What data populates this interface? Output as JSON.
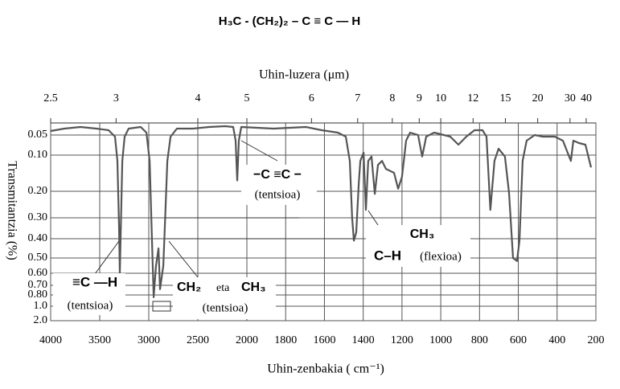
{
  "chart_data": {
    "type": "line",
    "title": "H₃C - (CH₂)₂ – C ≡ C — H",
    "top_axis": {
      "label": "Uhin-luzera (μm)",
      "ticks": [
        2.5,
        3,
        4,
        5,
        6,
        7,
        8,
        9,
        10,
        12,
        15,
        20,
        30,
        40
      ]
    },
    "xlabel": "Uhin-zenbakia ( cm⁻¹)",
    "ylabel": "Transmitantzia (%)",
    "xlim": [
      4000,
      200
    ],
    "x_scale_break": 2000,
    "xticks": [
      4000,
      3500,
      3000,
      2500,
      2000,
      1800,
      1600,
      1400,
      1200,
      1000,
      800,
      600,
      400,
      200
    ],
    "ylim": [
      0.02,
      2
    ],
    "yticks": [
      0.05,
      {
        "value": 0.1,
        "label": "0.10"
      },
      {
        "value": 0.2,
        "label": "0.20"
      },
      {
        "value": 0.3,
        "label": "0.30"
      },
      {
        "value": 0.4,
        "label": "0.40"
      },
      {
        "value": 0.5,
        "label": "0.50"
      },
      {
        "value": 0.6,
        "label": "0.60"
      },
      {
        "value": 0.7,
        "label": "0.70"
      },
      {
        "value": 0.8,
        "label": "0.80"
      },
      {
        "value": 1,
        "label": "1.0"
      },
      {
        "value": 2,
        "label": "2.0"
      }
    ],
    "grid": true,
    "series": [
      {
        "color": "#555555",
        "x": [
          4000,
          3861,
          3697,
          3533,
          3410,
          3344,
          3320,
          3303,
          3295,
          3270,
          3246,
          3205,
          3082,
          3024,
          2991,
          2967,
          2950,
          2926,
          2901,
          2885,
          2852,
          2836,
          2811,
          2778,
          2713,
          2549,
          2385,
          2221,
          2139,
          2115,
          2098,
          2082,
          2057,
          1863,
          1697,
          1614,
          1531,
          1490,
          1469,
          1457,
          1448,
          1436,
          1423,
          1415,
          1398,
          1386,
          1374,
          1357,
          1340,
          1324,
          1303,
          1283,
          1241,
          1220,
          1200,
          1179,
          1158,
          1117,
          1096,
          1075,
          1034,
          951,
          909,
          868,
          826,
          785,
          764,
          744,
          723,
          702,
          669,
          648,
          627,
          607,
          594,
          578,
          557,
          515,
          474,
          412,
          370,
          329,
          316,
          287,
          254,
          225
        ],
        "values": [
          0.04,
          0.034,
          0.03,
          0.034,
          0.038,
          0.054,
          0.116,
          0.335,
          0.6,
          0.116,
          0.054,
          0.034,
          0.03,
          0.044,
          0.116,
          0.41,
          0.84,
          0.55,
          0.45,
          0.74,
          0.55,
          0.34,
          0.116,
          0.054,
          0.034,
          0.034,
          0.03,
          0.028,
          0.03,
          0.064,
          0.17,
          0.064,
          0.03,
          0.034,
          0.03,
          0.038,
          0.044,
          0.054,
          0.116,
          0.3,
          0.41,
          0.37,
          0.18,
          0.116,
          0.094,
          0.27,
          0.116,
          0.104,
          0.21,
          0.127,
          0.116,
          0.138,
          0.149,
          0.193,
          0.16,
          0.064,
          0.044,
          0.05,
          0.104,
          0.054,
          0.044,
          0.054,
          0.074,
          0.054,
          0.038,
          0.038,
          0.054,
          0.27,
          0.116,
          0.084,
          0.104,
          0.206,
          0.5,
          0.52,
          0.41,
          0.116,
          0.064,
          0.05,
          0.054,
          0.054,
          0.064,
          0.116,
          0.064,
          0.07,
          0.074,
          0.134
        ]
      }
    ],
    "annotations": [
      "−C ≡C −",
      "(tentsioa)",
      "CH₃",
      "C–H",
      "(flexioa)",
      "≡C —H",
      "(tentsioa)",
      "CH₂",
      "eta",
      "CH₃",
      "(tentsioa)"
    ]
  }
}
